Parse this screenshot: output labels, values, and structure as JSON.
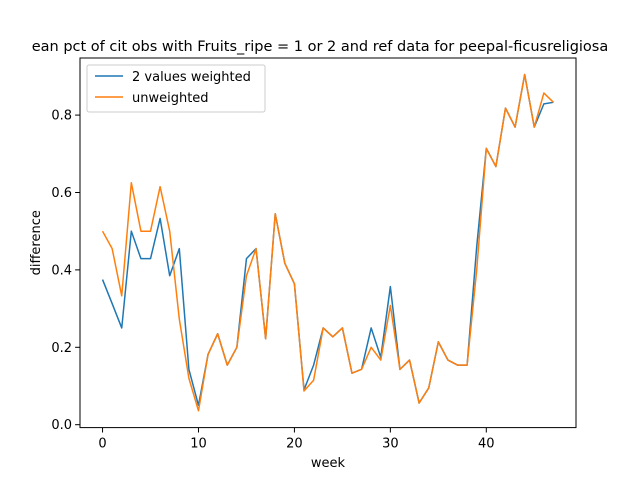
{
  "chart_data": {
    "type": "line",
    "title": "ean pct of cit obs with Fruits_ripe = 1 or 2 and ref data for peepal-ficusreligiosa",
    "xlabel": "week",
    "ylabel": "difference",
    "xlim": [
      -2.35,
      49.35
    ],
    "ylim": [
      -0.0075,
      0.9475
    ],
    "xticks": [
      0,
      10,
      20,
      30,
      40
    ],
    "yticks": [
      0.0,
      0.2,
      0.4,
      0.6,
      0.8
    ],
    "xtick_labels": [
      "0",
      "10",
      "20",
      "30",
      "40"
    ],
    "ytick_labels": [
      "0.0",
      "0.2",
      "0.4",
      "0.6",
      "0.8"
    ],
    "grid": false,
    "legend_position": "upper-left",
    "x": [
      0,
      1,
      2,
      3,
      4,
      5,
      6,
      7,
      8,
      9,
      10,
      11,
      12,
      13,
      14,
      15,
      16,
      17,
      18,
      19,
      20,
      21,
      22,
      23,
      24,
      25,
      26,
      27,
      28,
      29,
      30,
      31,
      32,
      33,
      34,
      35,
      36,
      37,
      38,
      39,
      40,
      41,
      42,
      43,
      44,
      45,
      46,
      47
    ],
    "series": [
      {
        "name": "2 values weighted",
        "color": "#1f77b4",
        "values": [
          0.375,
          0.313,
          0.25,
          0.5,
          0.429,
          0.429,
          0.533,
          0.385,
          0.455,
          0.143,
          0.05,
          0.182,
          0.235,
          0.154,
          0.2,
          0.429,
          0.455,
          0.222,
          0.545,
          0.417,
          0.364,
          0.09,
          0.154,
          0.25,
          0.227,
          0.25,
          0.133,
          0.143,
          0.25,
          0.174,
          0.357,
          0.143,
          0.167,
          0.056,
          0.095,
          0.214,
          0.167,
          0.154,
          0.154,
          0.46,
          0.714,
          0.667,
          0.818,
          0.769,
          0.905,
          0.769,
          0.829,
          0.833
        ]
      },
      {
        "name": "unweighted",
        "color": "#ff7f0e",
        "values": [
          0.5,
          0.455,
          0.333,
          0.625,
          0.5,
          0.5,
          0.615,
          0.5,
          0.273,
          0.12,
          0.036,
          0.182,
          0.235,
          0.154,
          0.2,
          0.385,
          0.455,
          0.222,
          0.545,
          0.417,
          0.364,
          0.087,
          0.115,
          0.25,
          0.227,
          0.25,
          0.133,
          0.143,
          0.2,
          0.167,
          0.308,
          0.143,
          0.167,
          0.056,
          0.095,
          0.214,
          0.167,
          0.154,
          0.154,
          0.4,
          0.714,
          0.667,
          0.818,
          0.769,
          0.905,
          0.769,
          0.857,
          0.833
        ]
      }
    ]
  }
}
